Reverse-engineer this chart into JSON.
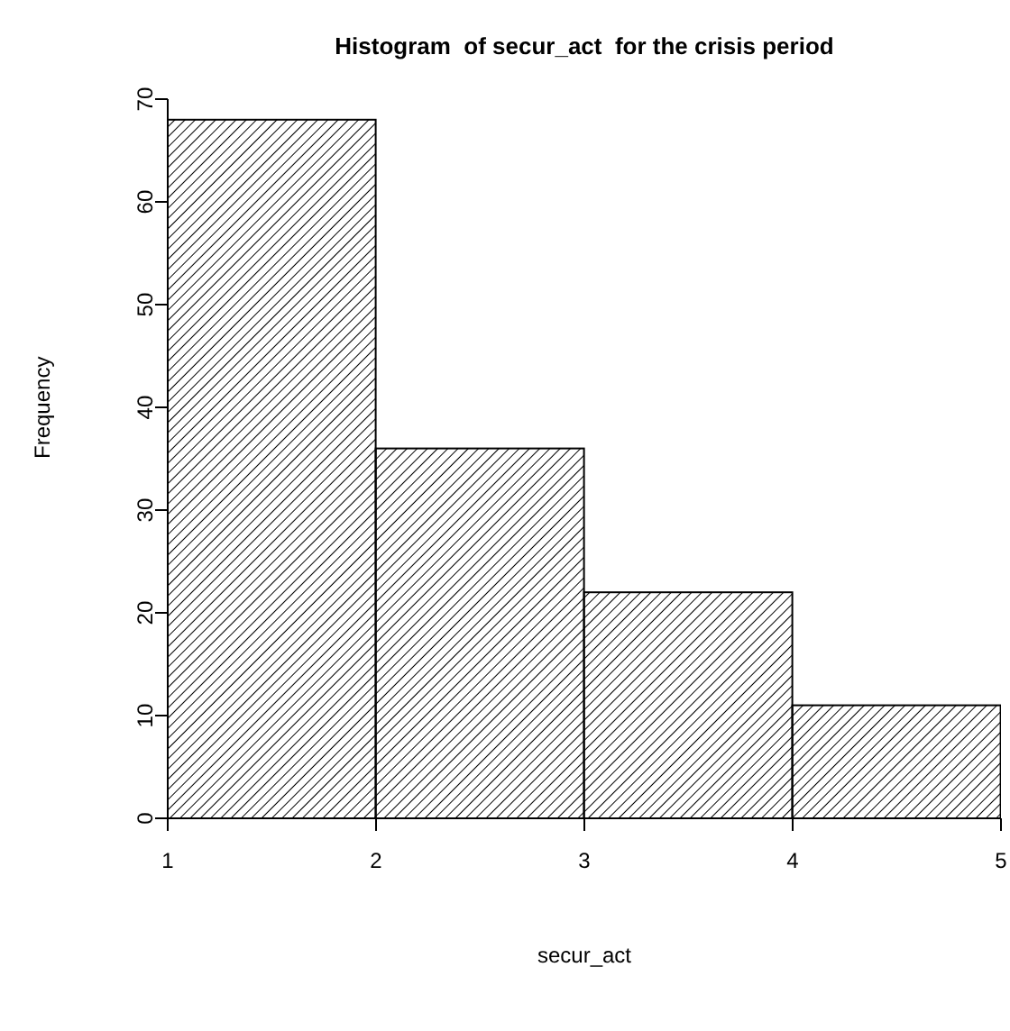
{
  "chart_data": {
    "type": "histogram",
    "title": "Histogram  of secur_act  for the crisis period",
    "xlabel": "secur_act",
    "ylabel": "Frequency",
    "bins": [
      1,
      2,
      3,
      4,
      5
    ],
    "values": [
      68,
      36,
      22,
      11
    ],
    "color": "#000000",
    "xlim": [
      1,
      5
    ],
    "xticks": [
      1,
      2,
      3,
      4,
      5
    ],
    "ylim": [
      0,
      70
    ],
    "yticks": [
      0,
      10,
      20,
      30,
      40,
      50,
      60,
      70
    ],
    "grid": false
  }
}
